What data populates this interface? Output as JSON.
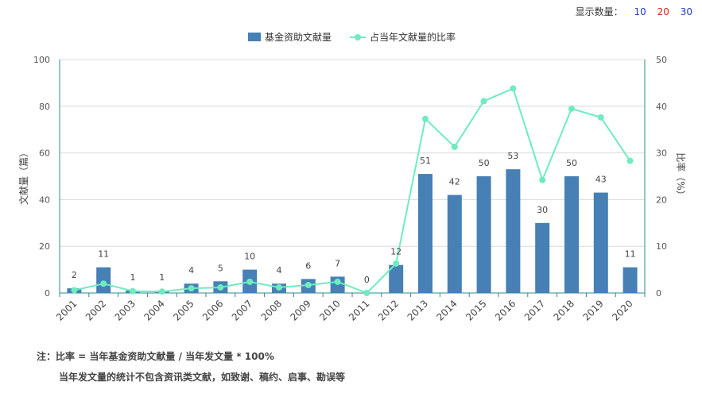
{
  "controls": {
    "label": "显示数量：",
    "options": [
      {
        "label": "10",
        "color": "#1f3fcf"
      },
      {
        "label": "20",
        "color": "#e02020"
      },
      {
        "label": "30",
        "color": "#1f3fcf"
      }
    ]
  },
  "chart_data": {
    "type": "bar+line",
    "categories": [
      "2001",
      "2002",
      "2003",
      "2004",
      "2005",
      "2006",
      "2007",
      "2008",
      "2009",
      "2010",
      "2011",
      "2012",
      "2013",
      "2014",
      "2015",
      "2016",
      "2017",
      "2018",
      "2019",
      "2020"
    ],
    "series": [
      {
        "name": "基金资助文献量",
        "type": "bar",
        "axis": "left",
        "color": "#4680b4",
        "values": [
          2,
          11,
          1,
          1,
          4,
          5,
          10,
          4,
          6,
          7,
          0,
          12,
          51,
          42,
          50,
          53,
          30,
          50,
          43,
          11
        ]
      },
      {
        "name": "占当年文献量的比率",
        "type": "line",
        "axis": "right",
        "color": "#6eecc0",
        "values": [
          0.6,
          2.0,
          0.4,
          0.3,
          1.0,
          1.2,
          2.4,
          1.2,
          1.7,
          2.4,
          0.0,
          6.3,
          37.3,
          31.3,
          41.1,
          43.8,
          24.2,
          39.5,
          37.6,
          28.3
        ]
      }
    ],
    "ylabel": "文献量（篇）",
    "y2label": "比率（%）",
    "ylim": [
      0,
      100
    ],
    "yticks": [
      0,
      20,
      40,
      60,
      80,
      100
    ],
    "y2lim": [
      0,
      50
    ],
    "y2ticks": [
      0,
      10,
      20,
      30,
      40,
      50
    ],
    "legend_position": "top-center",
    "grid": true
  },
  "notes": {
    "line1": "注：比率 = 当年基金资助文献量 / 当年发文量 * 100%",
    "line2": "当年发文量的统计不包含资讯类文献，如致谢、稿约、启事、勘误等"
  }
}
